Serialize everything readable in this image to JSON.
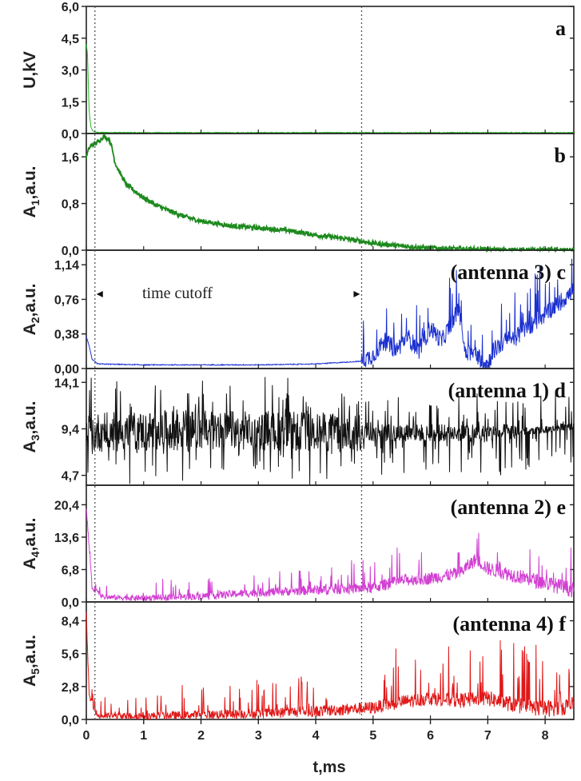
{
  "chart_data": {
    "type": "line",
    "x_axis": {
      "label": "t,ms",
      "range": [
        0,
        8.5
      ],
      "ticks": [
        0,
        1,
        2,
        3,
        4,
        5,
        6,
        7,
        8
      ],
      "tick_labels": [
        "0",
        "1",
        "2",
        "3",
        "4",
        "5",
        "6",
        "7",
        "8"
      ]
    },
    "vertical_markers": [
      0.15,
      4.8
    ],
    "annotation": {
      "text": "time cutoff",
      "from": 0.15,
      "to": 4.8,
      "panel": "c"
    },
    "panels": [
      {
        "id": "a",
        "label": "a",
        "ylabel": "U,kV",
        "ylim": [
          0,
          6.0
        ],
        "yticks": [
          0,
          1.5,
          3.0,
          4.5,
          6.0
        ],
        "ytick_labels": [
          "0,0",
          "1,5",
          "3,0",
          "4,5",
          "6,0"
        ],
        "color": "#22bb22",
        "series": {
          "x": [
            0,
            0.02,
            0.05,
            0.08,
            0.12,
            0.2,
            1,
            2,
            3,
            4,
            5,
            6,
            7,
            8,
            8.5
          ],
          "y": [
            4.2,
            3.8,
            1.0,
            0.3,
            0.1,
            0.05,
            0.04,
            0.04,
            0.04,
            0.04,
            0.04,
            0.04,
            0.04,
            0.04,
            0.04
          ]
        }
      },
      {
        "id": "b",
        "label": "b",
        "ylabel": "A1,a.u.",
        "ylabel_main": "A",
        "ylabel_sub": "1",
        "ylabel_rest": ",a.u.",
        "ylim": [
          0,
          2.0
        ],
        "yticks": [
          0,
          0.8,
          1.6
        ],
        "ytick_labels": [
          "0,0",
          "0,8",
          "1,6"
        ],
        "color": "#1e8a1e",
        "series": {
          "x": [
            0,
            0.05,
            0.1,
            0.2,
            0.3,
            0.4,
            0.45,
            0.5,
            0.6,
            0.7,
            0.8,
            1.0,
            1.2,
            1.5,
            1.8,
            2.0,
            2.5,
            3.0,
            3.5,
            4.0,
            4.5,
            5.0,
            5.5,
            6.0,
            6.5,
            7.0,
            7.5,
            8.0,
            8.5
          ],
          "y": [
            1.6,
            1.75,
            1.8,
            1.85,
            1.95,
            1.9,
            1.75,
            1.5,
            1.3,
            1.12,
            1.05,
            0.9,
            0.78,
            0.65,
            0.55,
            0.5,
            0.42,
            0.38,
            0.34,
            0.26,
            0.2,
            0.12,
            0.07,
            0.04,
            0.02,
            0.01,
            0.005,
            0.0,
            0.0
          ]
        }
      },
      {
        "id": "c",
        "label": "(antenna 3) c",
        "ylabel": "A2,a.u.",
        "ylabel_main": "A",
        "ylabel_sub": "2",
        "ylabel_rest": ",a.u.",
        "ylim": [
          0,
          1.3
        ],
        "yticks": [
          0,
          0.38,
          0.76,
          1.14
        ],
        "ytick_labels": [
          "0,00",
          "0,38",
          "0,76",
          "1,14"
        ],
        "color": "#1a2fd0",
        "series": {
          "x": [
            0,
            0.05,
            0.1,
            0.2,
            1,
            2,
            3,
            4,
            4.8,
            5.0,
            5.2,
            5.4,
            5.6,
            5.8,
            6.0,
            6.2,
            6.4,
            6.5,
            6.6,
            6.8,
            7.0,
            7.1,
            7.3,
            7.5,
            7.7,
            8.0,
            8.2,
            8.5
          ],
          "y": [
            0.35,
            0.25,
            0.1,
            0.05,
            0.04,
            0.04,
            0.04,
            0.05,
            0.08,
            0.15,
            0.3,
            0.2,
            0.35,
            0.2,
            0.45,
            0.3,
            0.55,
            0.65,
            0.2,
            0.15,
            0.05,
            0.2,
            0.3,
            0.35,
            0.45,
            0.6,
            0.7,
            0.85
          ]
        }
      },
      {
        "id": "d",
        "label": "(antenna 1) d",
        "ylabel": "A3,a.u.",
        "ylabel_main": "A",
        "ylabel_sub": "3",
        "ylabel_rest": ",a.u.",
        "ylim": [
          3.7,
          15.5
        ],
        "yticks": [
          4.7,
          9.4,
          14.1
        ],
        "ytick_labels": [
          "4,7",
          "9,4",
          "14,1"
        ],
        "color": "#111111",
        "series": {
          "x": [
            0,
            1,
            2,
            3,
            4,
            5,
            6,
            7,
            8,
            8.5
          ],
          "y": [
            9.0,
            9.2,
            9.3,
            9.2,
            9.1,
            9.0,
            9.0,
            8.9,
            9.3,
            9.8
          ]
        }
      },
      {
        "id": "e",
        "label": "(antenna 2) e",
        "ylabel": "A4,a.u.",
        "ylabel_main": "A",
        "ylabel_sub": "4",
        "ylabel_rest": ",a.u.",
        "ylim": [
          0,
          24.5
        ],
        "yticks": [
          0,
          6.8,
          13.6,
          20.4
        ],
        "ytick_labels": [
          "0,0",
          "6,8",
          "13,6",
          "20,4"
        ],
        "color": "#d23fd2",
        "series": {
          "x": [
            0,
            0.1,
            0.3,
            1,
            2,
            3,
            4,
            5,
            5.5,
            6,
            6.5,
            6.8,
            7.0,
            7.5,
            8,
            8.5
          ],
          "y": [
            20,
            3,
            1.0,
            0.8,
            1.2,
            2.0,
            2.5,
            3.0,
            4.5,
            5.0,
            6.0,
            9.0,
            7.0,
            5.5,
            4.0,
            2.5
          ]
        }
      },
      {
        "id": "f",
        "label": "(antenna 4) f",
        "ylabel": "A5,a.u.",
        "ylabel_main": "A",
        "ylabel_sub": "5",
        "ylabel_rest": ",a.u.",
        "ylim": [
          0,
          10.0
        ],
        "yticks": [
          0,
          2.8,
          5.6,
          8.4
        ],
        "ytick_labels": [
          "0,0",
          "2,8",
          "5,6",
          "8,4"
        ],
        "color": "#e01818",
        "series": {
          "x": [
            0,
            0.05,
            0.2,
            1,
            2,
            3,
            4,
            5,
            5.5,
            6,
            6.5,
            7,
            7.5,
            8,
            8.5
          ],
          "y": [
            9.0,
            2.0,
            0.3,
            0.3,
            0.4,
            0.5,
            0.7,
            1.0,
            1.5,
            1.8,
            1.6,
            1.8,
            1.2,
            0.9,
            1.2
          ]
        }
      }
    ]
  }
}
